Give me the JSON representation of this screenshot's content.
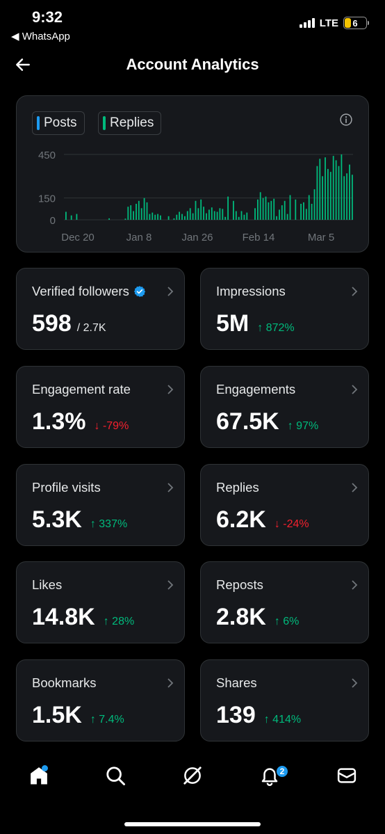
{
  "status_bar": {
    "time": "9:32",
    "back_app": "◀ WhatsApp",
    "network": "LTE",
    "battery": "6"
  },
  "header": {
    "title": "Account Analytics"
  },
  "chart_data": {
    "type": "bar",
    "legend": [
      "Posts",
      "Replies"
    ],
    "colors": {
      "posts": "#1d9bf0",
      "replies": "#00ba7c"
    },
    "y_ticks": [
      "450",
      "150",
      "0"
    ],
    "x_ticks": [
      "Dec 20",
      "Jan 8",
      "Jan 26",
      "Feb 14",
      "Mar 5"
    ],
    "ylim": [
      0,
      450
    ],
    "grid": true,
    "series": [
      {
        "name": "Replies",
        "values": [
          55,
          0,
          30,
          0,
          40,
          0,
          0,
          0,
          0,
          0,
          0,
          0,
          0,
          0,
          0,
          0,
          10,
          0,
          0,
          0,
          0,
          0,
          8,
          90,
          100,
          60,
          110,
          130,
          80,
          150,
          120,
          40,
          50,
          35,
          40,
          30,
          0,
          0,
          25,
          0,
          10,
          35,
          55,
          40,
          25,
          60,
          80,
          45,
          130,
          80,
          140,
          90,
          45,
          70,
          85,
          60,
          55,
          80,
          75,
          20,
          160,
          0,
          130,
          60,
          20,
          60,
          35,
          50,
          0,
          0,
          80,
          140,
          190,
          150,
          160,
          120,
          130,
          145,
          25,
          70,
          100,
          130,
          40,
          170,
          0,
          140,
          0,
          110,
          120,
          75,
          170,
          110,
          210,
          370,
          420,
          300,
          430,
          350,
          330,
          440,
          410,
          370,
          450,
          300,
          320,
          380,
          310
        ]
      }
    ]
  },
  "cards": [
    {
      "label": "Verified followers",
      "value": "598",
      "sub": "/ 2.7K",
      "delta": "",
      "direction": ""
    },
    {
      "label": "Impressions",
      "value": "5M",
      "sub": "",
      "delta": "↑ 872%",
      "direction": "up"
    },
    {
      "label": "Engagement rate",
      "value": "1.3%",
      "sub": "",
      "delta": "↓ -79%",
      "direction": "down"
    },
    {
      "label": "Engagements",
      "value": "67.5K",
      "sub": "",
      "delta": "↑ 97%",
      "direction": "up"
    },
    {
      "label": "Profile visits",
      "value": "5.3K",
      "sub": "",
      "delta": "↑ 337%",
      "direction": "up"
    },
    {
      "label": "Replies",
      "value": "6.2K",
      "sub": "",
      "delta": "↓ -24%",
      "direction": "down"
    },
    {
      "label": "Likes",
      "value": "14.8K",
      "sub": "",
      "delta": "↑ 28%",
      "direction": "up"
    },
    {
      "label": "Reposts",
      "value": "2.8K",
      "sub": "",
      "delta": "↑ 6%",
      "direction": "up"
    },
    {
      "label": "Bookmarks",
      "value": "1.5K",
      "sub": "",
      "delta": "↑ 7.4%",
      "direction": "up"
    },
    {
      "label": "Shares",
      "value": "139",
      "sub": "",
      "delta": "↑ 414%",
      "direction": "up"
    }
  ],
  "nav": {
    "notifications_badge": "2"
  }
}
